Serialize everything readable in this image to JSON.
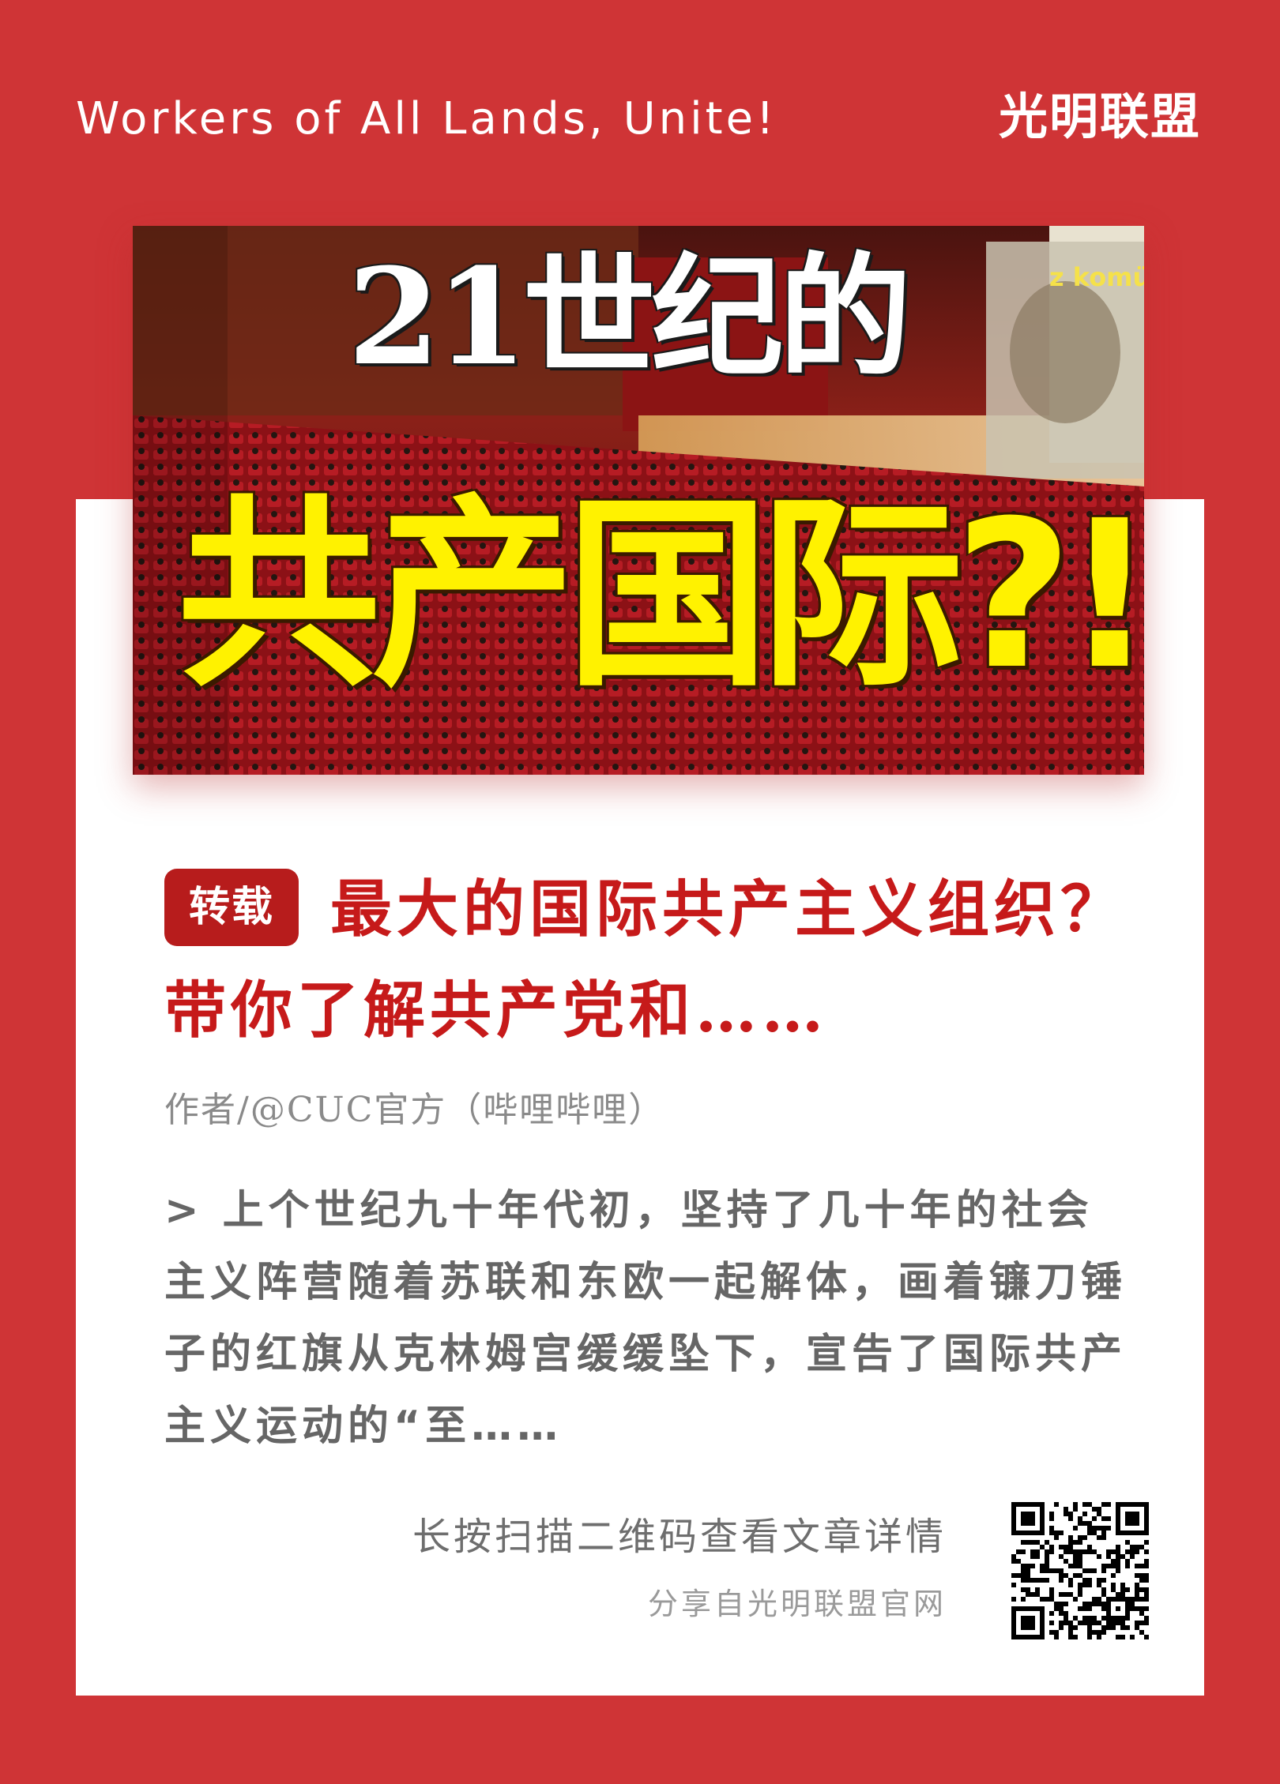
{
  "header": {
    "slogan": "Workers of All Lands, Unite!",
    "brand": "光明联盟"
  },
  "hero": {
    "line1": "21世纪的",
    "line2": "共产国际?!",
    "screen_text": "z komünisttir"
  },
  "article": {
    "tag": "转载",
    "title": "最大的国际共产主义组织？带你了解共产党和……",
    "author": "作者/@CUC官方（哔哩哔哩）",
    "excerpt": "> 上个世纪九十年代初，坚持了几十年的社会主义阵营随着苏联和东欧一起解体，画着镰刀锤子的红旗从克林姆宫缓缓坠下，宣告了国际共产主义运动的“至……"
  },
  "footer": {
    "scan_hint": "长按扫描二维码查看文章详情",
    "share_source": "分享自光明联盟官网"
  },
  "colors": {
    "background": "#cf3436",
    "card": "#ffffff",
    "title": "#c61a1a",
    "tag": "#b71c1c",
    "hero_yellow": "#fff200"
  }
}
